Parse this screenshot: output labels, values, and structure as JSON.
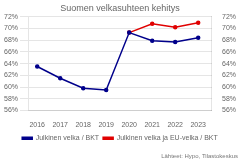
{
  "chart_data": {
    "type": "line",
    "title": "Suomen velkasuhteen kehitys",
    "x": [
      2016,
      2017,
      2018,
      2019,
      2020,
      2021,
      2022,
      2023
    ],
    "series": [
      {
        "name": "Julkinen velka / BKT",
        "color": "#00008b",
        "values": [
          63.5,
          61.5,
          59.8,
          59.5,
          69.3,
          67.9,
          67.7,
          68.4
        ]
      },
      {
        "name": "Julkinen velka ja EU-velka / BKT",
        "color": "#e00000",
        "values": [
          null,
          null,
          null,
          null,
          69.3,
          70.8,
          70.2,
          71.0
        ]
      }
    ],
    "xlim": [
      2015.6,
      2023.6
    ],
    "xticks": [
      2016,
      2017,
      2018,
      2019,
      2020,
      2021,
      2022,
      2023
    ],
    "ylim": [
      56,
      72
    ],
    "yticks": [
      {
        "value": 56,
        "label": "56%"
      },
      {
        "value": 58,
        "label": "58%"
      },
      {
        "value": 60,
        "label": "60%"
      },
      {
        "value": 62,
        "label": "62%"
      },
      {
        "value": 64,
        "label": "64%"
      },
      {
        "value": 66,
        "label": "66%"
      },
      {
        "value": 68,
        "label": "68%"
      },
      {
        "value": 70,
        "label": "70%"
      },
      {
        "value": 72,
        "label": "72%"
      }
    ],
    "y2lim": [
      56,
      72
    ],
    "y2ticks": [
      {
        "value": 56,
        "label": "56%"
      },
      {
        "value": 58,
        "label": "58%"
      },
      {
        "value": 60,
        "label": "60%"
      },
      {
        "value": 62,
        "label": "62%"
      },
      {
        "value": 64,
        "label": "64%"
      },
      {
        "value": 66,
        "label": "66%"
      },
      {
        "value": 68,
        "label": "68%"
      },
      {
        "value": 70,
        "label": "70%"
      },
      {
        "value": 72,
        "label": "72%"
      }
    ],
    "grid": "y",
    "legend": "bottom",
    "annotations": [
      "Lähteet: Hypo, Tilastokeskus"
    ]
  }
}
